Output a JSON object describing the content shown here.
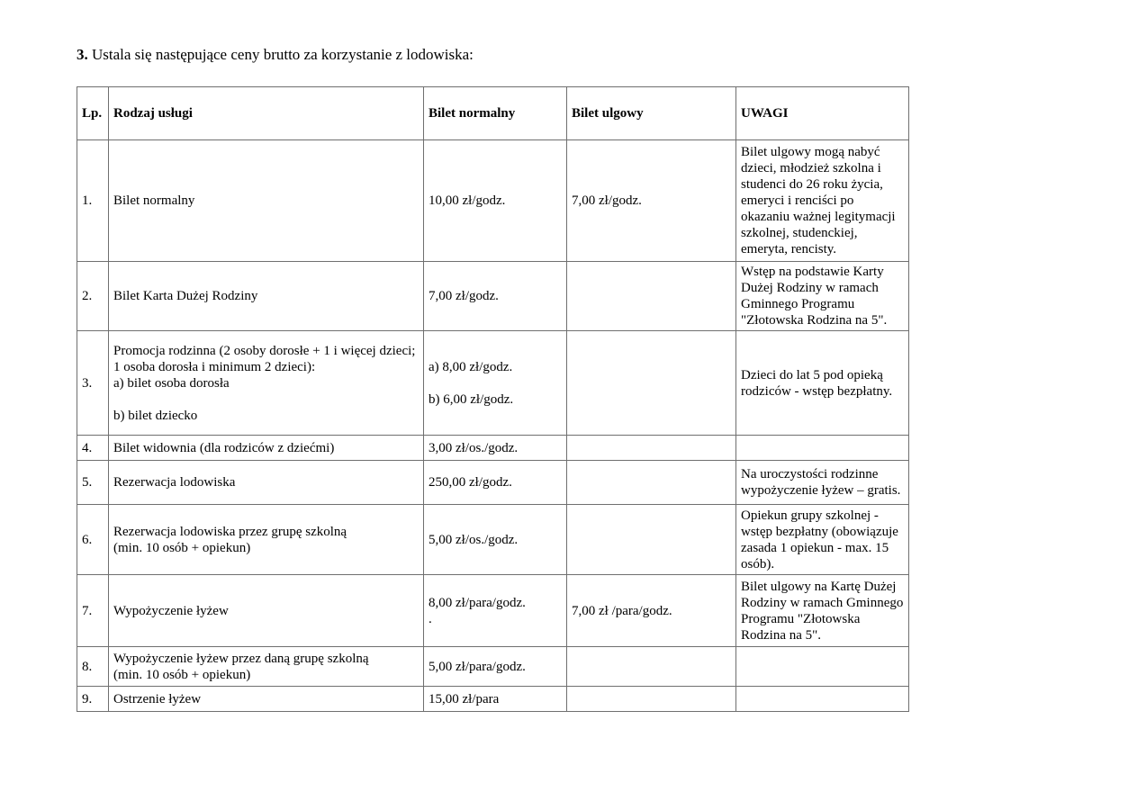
{
  "doc": {
    "title_number": "3.",
    "title_text": "Ustala się następujące ceny brutto za korzystanie z lodowiska:"
  },
  "table": {
    "headers": {
      "lp": "Lp.",
      "service": "Rodzaj usługi",
      "normal": "Bilet normalny",
      "reduced": "Bilet ulgowy",
      "notes": "UWAGI"
    },
    "rows": [
      {
        "lp": "1.",
        "service": "Bilet normalny",
        "normal": "10,00 zł/godz.",
        "reduced": "7,00 zł/godz.",
        "notes": "Bilet ulgowy mogą nabyć dzieci, młodzież szkolna i studenci do 26 roku życia, emeryci i renciści po okazaniu ważnej legitymacji szkolnej, studenckiej, emeryta, rencisty."
      },
      {
        "lp": "2.",
        "service": "Bilet Karta Dużej Rodziny",
        "normal": "7,00 zł/godz.",
        "reduced": "",
        "notes": "Wstęp na podstawie Karty Dużej Rodziny w ramach Gminnego Programu \"Złotowska Rodzina na 5\"."
      },
      {
        "lp": "3.",
        "service": "Promocja rodzinna (2 osoby dorosłe + 1 i więcej dzieci;\n1 osoba dorosła i minimum 2 dzieci):\na) bilet osoba dorosła\n\nb) bilet dziecko",
        "normal": "a) 8,00 zł/godz.\n\nb) 6,00 zł/godz.",
        "reduced": "",
        "notes": "Dzieci do lat 5 pod opieką rodziców - wstęp bezpłatny."
      },
      {
        "lp": "4.",
        "service": "Bilet widownia (dla rodziców z dziećmi)",
        "normal": "3,00 zł/os./godz.",
        "reduced": "",
        "notes": ""
      },
      {
        "lp": "5.",
        "service": "Rezerwacja lodowiska",
        "normal": "250,00 zł/godz.",
        "reduced": "",
        "notes": "Na uroczystości rodzinne wypożyczenie łyżew – gratis."
      },
      {
        "lp": "6.",
        "service": "Rezerwacja lodowiska przez grupę szkolną\n(min. 10 osób + opiekun)",
        "normal": "5,00 zł/os./godz.",
        "reduced": "",
        "notes": "Opiekun grupy szkolnej - wstęp bezpłatny (obowiązuje zasada 1 opiekun - max. 15 osób)."
      },
      {
        "lp": "7.",
        "service": "Wypożyczenie łyżew",
        "normal": "8,00 zł/para/godz.\n.",
        "reduced": "7,00 zł /para/godz.",
        "notes": "Bilet ulgowy na Kartę Dużej Rodziny w ramach Gminnego Programu \"Złotowska Rodzina na 5\"."
      },
      {
        "lp": "8.",
        "service": "Wypożyczenie łyżew przez daną grupę szkolną\n(min. 10 osób + opiekun)",
        "normal": "5,00 zł/para/godz.",
        "reduced": "",
        "notes": ""
      },
      {
        "lp": "9.",
        "service": "Ostrzenie łyżew",
        "normal": "15,00 zł/para",
        "reduced": "",
        "notes": ""
      }
    ]
  }
}
